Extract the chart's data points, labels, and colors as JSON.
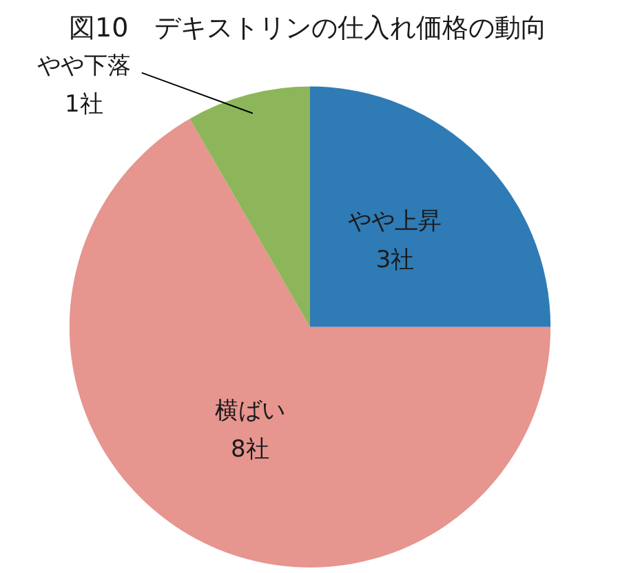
{
  "chart_data": {
    "type": "pie",
    "title": "図10　デキストリンの仕入れ価格の動向",
    "categories": [
      "やや上昇",
      "横ばい",
      "やや下落"
    ],
    "values": [
      3,
      8,
      1
    ],
    "colors": [
      "#2e7bb6",
      "#e6958f",
      "#8db65a"
    ],
    "value_labels": [
      "3社",
      "8社",
      "1社"
    ],
    "legend": false
  }
}
